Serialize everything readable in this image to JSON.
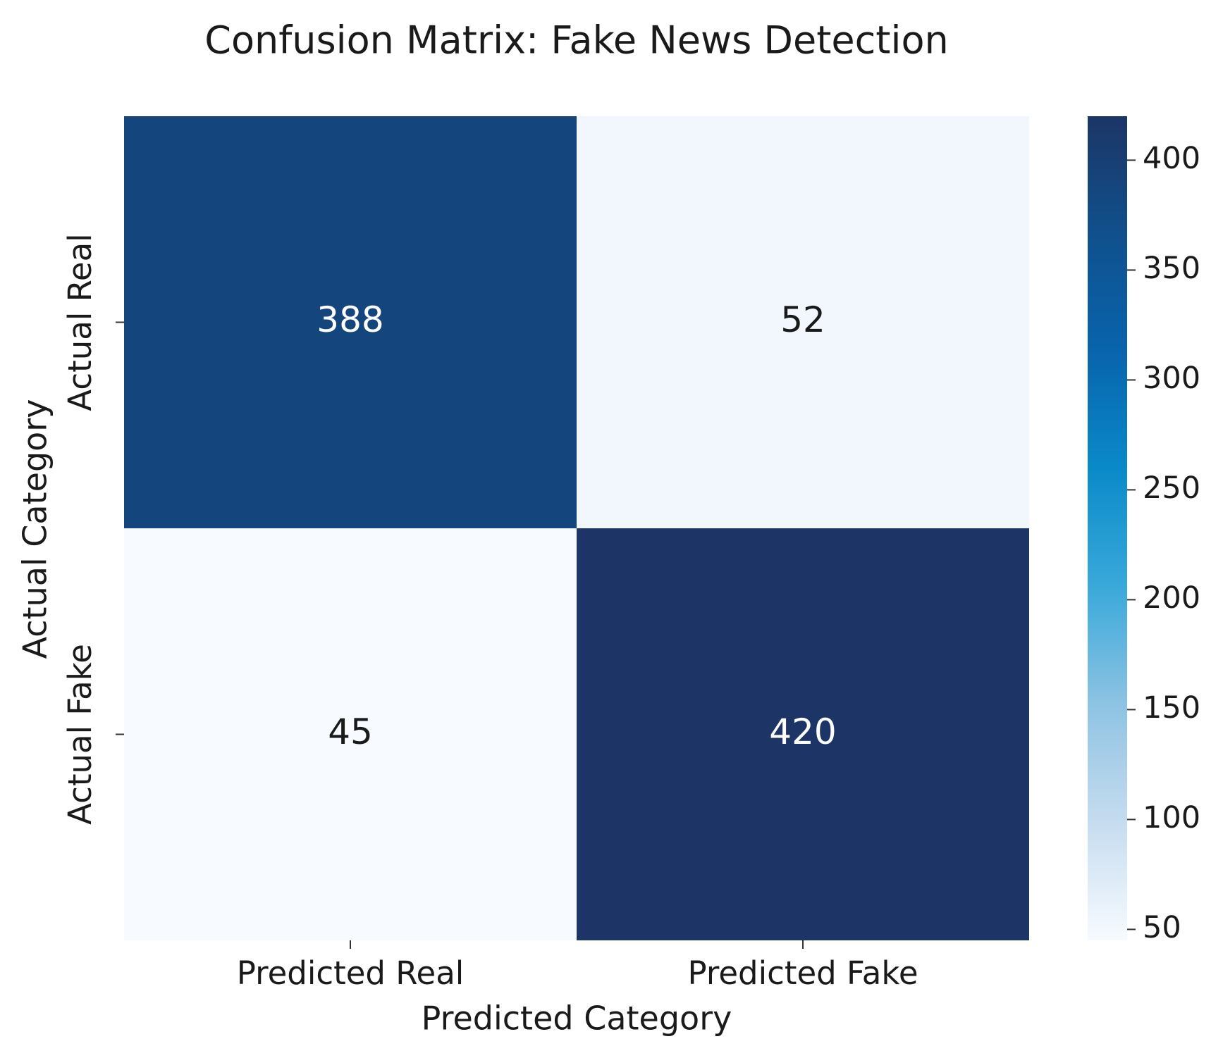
{
  "chart_data": {
    "type": "heatmap",
    "title": "Confusion Matrix: Fake News Detection",
    "x_label": "Predicted Category",
    "y_label": "Actual Category",
    "x_categories": [
      "Predicted Real",
      "Predicted Fake"
    ],
    "y_categories": [
      "Actual Real",
      "Actual Fake"
    ],
    "values": [
      [
        388,
        52
      ],
      [
        45,
        420
      ]
    ],
    "colormap": [
      "#f7fbff",
      "#c6dcef",
      "#8ec3e3",
      "#3aa9da",
      "#0a8ac9",
      "#0864ad",
      "#10508c",
      "#1c3566"
    ],
    "clim": [
      45,
      420
    ],
    "cticks": [
      50,
      100,
      150,
      200,
      250,
      300,
      350,
      400
    ]
  }
}
